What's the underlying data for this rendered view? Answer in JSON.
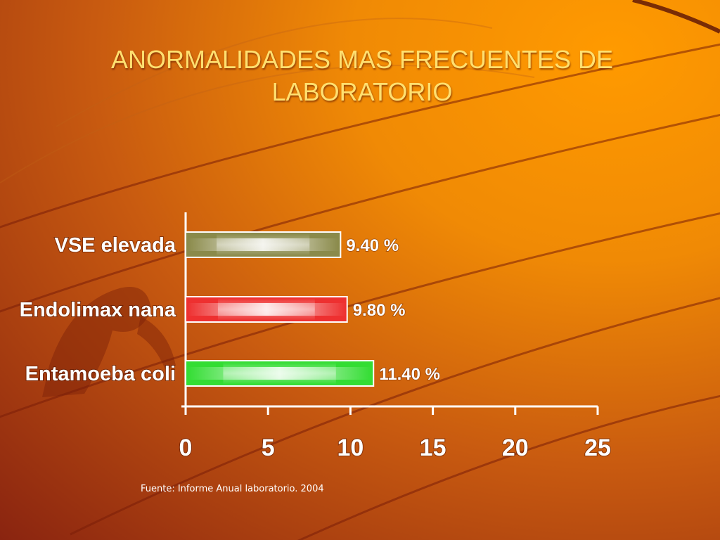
{
  "title": "ANORMALIDADES MAS FRECUENTES DE LABORATORIO",
  "source": "Fuente:  Informe Anual laboratorio.  2004",
  "chart_data": {
    "type": "bar",
    "orientation": "horizontal",
    "categories": [
      "VSE elevada",
      "Endolimax nana",
      "Entamoeba coli"
    ],
    "values": [
      9.4,
      9.8,
      11.4
    ],
    "data_labels": [
      "9.40 %",
      "9.80 %",
      "11.40 %"
    ],
    "bar_colors": [
      "#8a8a4a",
      "#ee3030",
      "#33dd33"
    ],
    "xlim": [
      0,
      25
    ],
    "xticks": [
      "0",
      "5",
      "10",
      "15",
      "20",
      "25"
    ],
    "title": "",
    "xlabel": "",
    "ylabel": "",
    "grid": false,
    "legend": "none"
  },
  "colors": {
    "background": "#e07808",
    "title": "#ffe070",
    "text": "#ffffff",
    "axis": "#ffffff"
  }
}
